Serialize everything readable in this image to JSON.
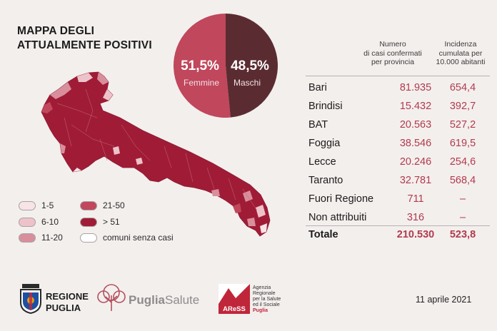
{
  "title": {
    "line1": "MAPPA DEGLI",
    "line2": "ATTUALMENTE POSITIVI"
  },
  "pie": {
    "slices": [
      {
        "pct_label": "51,5%",
        "label": "Femmine",
        "value": 51.5,
        "color": "#c0475c"
      },
      {
        "pct_label": "48,5%",
        "label": "Maschi",
        "value": 48.5,
        "color": "#5a2c31"
      }
    ]
  },
  "legend": {
    "items": [
      {
        "label": "1-5",
        "color": "#f6e4e6"
      },
      {
        "label": "6-10",
        "color": "#eec2c9"
      },
      {
        "label": "11-20",
        "color": "#d98e9c"
      },
      {
        "label": "21-50",
        "color": "#c0475c"
      },
      {
        "label": "> 51",
        "color": "#a01c36"
      },
      {
        "label": "comuni senza casi",
        "color": "#ffffff"
      }
    ]
  },
  "table": {
    "headers": {
      "cases": [
        "Numero",
        "di casi confermati",
        "per provincia"
      ],
      "incidence": [
        "Incidenza",
        "cumulata per",
        "10.000 abitanti"
      ]
    },
    "rows": [
      {
        "name": "Bari",
        "cases": "81.935",
        "incidence": "654,4"
      },
      {
        "name": "Brindisi",
        "cases": "15.432",
        "incidence": "392,7"
      },
      {
        "name": "BAT",
        "cases": "20.563",
        "incidence": "527,2"
      },
      {
        "name": "Foggia",
        "cases": "38.546",
        "incidence": "619,5"
      },
      {
        "name": "Lecce",
        "cases": "20.246",
        "incidence": "254,6"
      },
      {
        "name": "Taranto",
        "cases": "32.781",
        "incidence": "568,4"
      },
      {
        "name": "Fuori Regione",
        "cases": "711",
        "incidence": "–"
      },
      {
        "name": "Non attribuiti",
        "cases": "316",
        "incidence": "–"
      }
    ],
    "total": {
      "name": "Totale",
      "cases": "210.530",
      "incidence": "523,8"
    }
  },
  "chart_data": [
    {
      "type": "pie",
      "title": "",
      "slices": [
        {
          "label": "Femmine",
          "value": 51.5
        },
        {
          "label": "Maschi",
          "value": 48.5
        }
      ]
    },
    {
      "type": "table",
      "title": "",
      "columns": [
        "Numero di casi confermati per provincia",
        "Incidenza cumulata per 10.000 abitanti"
      ],
      "rows": [
        {
          "name": "Bari",
          "values": [
            81935,
            654.4
          ]
        },
        {
          "name": "Brindisi",
          "values": [
            15432,
            392.7
          ]
        },
        {
          "name": "BAT",
          "values": [
            20563,
            527.2
          ]
        },
        {
          "name": "Foggia",
          "values": [
            38546,
            619.5
          ]
        },
        {
          "name": "Lecce",
          "values": [
            20246,
            254.6
          ]
        },
        {
          "name": "Taranto",
          "values": [
            32781,
            568.4
          ]
        },
        {
          "name": "Fuori Regione",
          "values": [
            711,
            null
          ]
        },
        {
          "name": "Non attribuiti",
          "values": [
            316,
            null
          ]
        },
        {
          "name": "Totale",
          "values": [
            210530,
            523.8
          ]
        }
      ]
    }
  ],
  "logos": {
    "regione_line1": "REGIONE",
    "regione_line2": "PUGLIA",
    "puglia_salute_bold": "Puglia",
    "puglia_salute_light": "Salute",
    "ares_badge": "AReSS",
    "ares_lines": [
      "Agenzia",
      "Regionale",
      "per la Salute",
      "ed il Sociale"
    ],
    "ares_red": "Puglia"
  },
  "date": "11 aprile 2021"
}
